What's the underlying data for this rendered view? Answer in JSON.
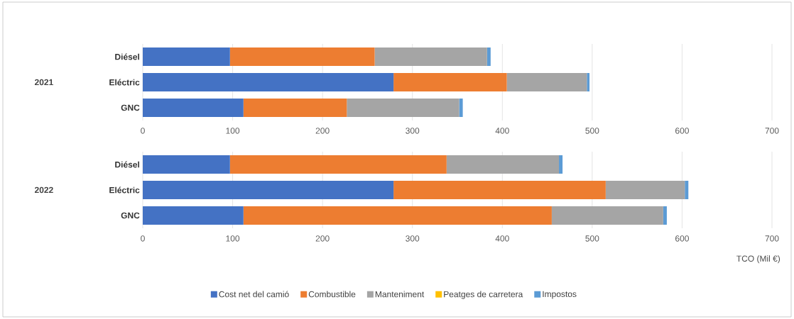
{
  "chart_data": [
    {
      "type": "bar",
      "orientation": "horizontal",
      "stacked": true,
      "ylabel": "2021",
      "categories": [
        "Diésel",
        "Eléctric",
        "GNC"
      ],
      "xlim": [
        0,
        700
      ],
      "xticks": [
        0,
        100,
        200,
        300,
        400,
        500,
        600,
        700
      ],
      "grid": "x",
      "series": [
        {
          "color": "#4472c4",
          "values": [
            97,
            279,
            112
          ]
        },
        {
          "color": "#ed7d31",
          "values": [
            161,
            126,
            115
          ]
        },
        {
          "color": "#a5a5a5",
          "values": [
            125,
            89,
            125
          ]
        },
        {
          "color": "#ffc000",
          "values": [
            0,
            0,
            0
          ]
        },
        {
          "color": "#5b9bd5",
          "values": [
            4,
            3,
            4
          ]
        }
      ]
    },
    {
      "type": "bar",
      "orientation": "horizontal",
      "stacked": true,
      "ylabel": "2022",
      "xlabel": "TCO (Mil €)",
      "categories": [
        "Diésel",
        "Eléctric",
        "GNC"
      ],
      "xlim": [
        0,
        700
      ],
      "xticks": [
        0,
        100,
        200,
        300,
        400,
        500,
        600,
        700
      ],
      "grid": "x",
      "legend": "bottom",
      "series": [
        {
          "name": "Cost net del camió",
          "color": "#4472c4",
          "values": [
            97,
            279,
            112
          ]
        },
        {
          "name": "Combustible",
          "color": "#ed7d31",
          "values": [
            241,
            236,
            343
          ]
        },
        {
          "name": "Manteniment",
          "color": "#a5a5a5",
          "values": [
            125,
            88,
            124
          ]
        },
        {
          "name": "Peatges de carretera",
          "color": "#ffc000",
          "values": [
            0,
            0,
            0
          ]
        },
        {
          "name": "Impostos",
          "color": "#5b9bd5",
          "values": [
            4,
            4,
            4
          ]
        }
      ]
    }
  ]
}
